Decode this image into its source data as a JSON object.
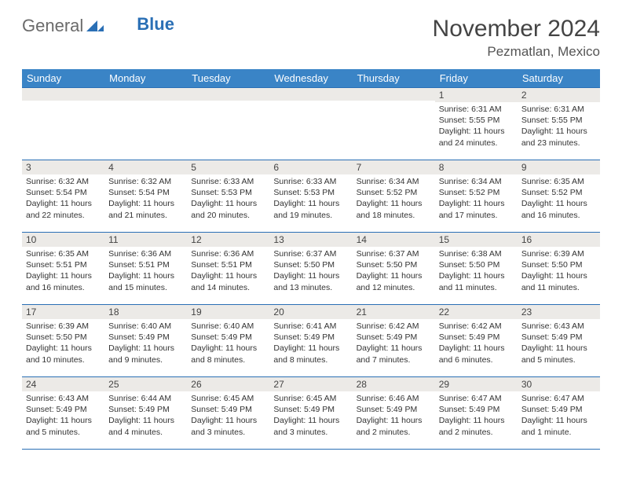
{
  "logo": {
    "part1": "General",
    "part2": "Blue"
  },
  "title": "November 2024",
  "location": "Pezmatlan, Mexico",
  "daynames": [
    "Sunday",
    "Monday",
    "Tuesday",
    "Wednesday",
    "Thursday",
    "Friday",
    "Saturday"
  ],
  "colors": {
    "header_bg": "#3a84c6",
    "header_text": "#ffffff",
    "cell_border": "#2a6fb5",
    "daynum_bg": "#eceae7",
    "logo_gray": "#6b6b6b",
    "logo_blue": "#2a6fb5"
  },
  "weeks": [
    [
      {
        "n": "",
        "sr": "",
        "ss": "",
        "dl": ""
      },
      {
        "n": "",
        "sr": "",
        "ss": "",
        "dl": ""
      },
      {
        "n": "",
        "sr": "",
        "ss": "",
        "dl": ""
      },
      {
        "n": "",
        "sr": "",
        "ss": "",
        "dl": ""
      },
      {
        "n": "",
        "sr": "",
        "ss": "",
        "dl": ""
      },
      {
        "n": "1",
        "sr": "Sunrise: 6:31 AM",
        "ss": "Sunset: 5:55 PM",
        "dl": "Daylight: 11 hours and 24 minutes."
      },
      {
        "n": "2",
        "sr": "Sunrise: 6:31 AM",
        "ss": "Sunset: 5:55 PM",
        "dl": "Daylight: 11 hours and 23 minutes."
      }
    ],
    [
      {
        "n": "3",
        "sr": "Sunrise: 6:32 AM",
        "ss": "Sunset: 5:54 PM",
        "dl": "Daylight: 11 hours and 22 minutes."
      },
      {
        "n": "4",
        "sr": "Sunrise: 6:32 AM",
        "ss": "Sunset: 5:54 PM",
        "dl": "Daylight: 11 hours and 21 minutes."
      },
      {
        "n": "5",
        "sr": "Sunrise: 6:33 AM",
        "ss": "Sunset: 5:53 PM",
        "dl": "Daylight: 11 hours and 20 minutes."
      },
      {
        "n": "6",
        "sr": "Sunrise: 6:33 AM",
        "ss": "Sunset: 5:53 PM",
        "dl": "Daylight: 11 hours and 19 minutes."
      },
      {
        "n": "7",
        "sr": "Sunrise: 6:34 AM",
        "ss": "Sunset: 5:52 PM",
        "dl": "Daylight: 11 hours and 18 minutes."
      },
      {
        "n": "8",
        "sr": "Sunrise: 6:34 AM",
        "ss": "Sunset: 5:52 PM",
        "dl": "Daylight: 11 hours and 17 minutes."
      },
      {
        "n": "9",
        "sr": "Sunrise: 6:35 AM",
        "ss": "Sunset: 5:52 PM",
        "dl": "Daylight: 11 hours and 16 minutes."
      }
    ],
    [
      {
        "n": "10",
        "sr": "Sunrise: 6:35 AM",
        "ss": "Sunset: 5:51 PM",
        "dl": "Daylight: 11 hours and 16 minutes."
      },
      {
        "n": "11",
        "sr": "Sunrise: 6:36 AM",
        "ss": "Sunset: 5:51 PM",
        "dl": "Daylight: 11 hours and 15 minutes."
      },
      {
        "n": "12",
        "sr": "Sunrise: 6:36 AM",
        "ss": "Sunset: 5:51 PM",
        "dl": "Daylight: 11 hours and 14 minutes."
      },
      {
        "n": "13",
        "sr": "Sunrise: 6:37 AM",
        "ss": "Sunset: 5:50 PM",
        "dl": "Daylight: 11 hours and 13 minutes."
      },
      {
        "n": "14",
        "sr": "Sunrise: 6:37 AM",
        "ss": "Sunset: 5:50 PM",
        "dl": "Daylight: 11 hours and 12 minutes."
      },
      {
        "n": "15",
        "sr": "Sunrise: 6:38 AM",
        "ss": "Sunset: 5:50 PM",
        "dl": "Daylight: 11 hours and 11 minutes."
      },
      {
        "n": "16",
        "sr": "Sunrise: 6:39 AM",
        "ss": "Sunset: 5:50 PM",
        "dl": "Daylight: 11 hours and 11 minutes."
      }
    ],
    [
      {
        "n": "17",
        "sr": "Sunrise: 6:39 AM",
        "ss": "Sunset: 5:50 PM",
        "dl": "Daylight: 11 hours and 10 minutes."
      },
      {
        "n": "18",
        "sr": "Sunrise: 6:40 AM",
        "ss": "Sunset: 5:49 PM",
        "dl": "Daylight: 11 hours and 9 minutes."
      },
      {
        "n": "19",
        "sr": "Sunrise: 6:40 AM",
        "ss": "Sunset: 5:49 PM",
        "dl": "Daylight: 11 hours and 8 minutes."
      },
      {
        "n": "20",
        "sr": "Sunrise: 6:41 AM",
        "ss": "Sunset: 5:49 PM",
        "dl": "Daylight: 11 hours and 8 minutes."
      },
      {
        "n": "21",
        "sr": "Sunrise: 6:42 AM",
        "ss": "Sunset: 5:49 PM",
        "dl": "Daylight: 11 hours and 7 minutes."
      },
      {
        "n": "22",
        "sr": "Sunrise: 6:42 AM",
        "ss": "Sunset: 5:49 PM",
        "dl": "Daylight: 11 hours and 6 minutes."
      },
      {
        "n": "23",
        "sr": "Sunrise: 6:43 AM",
        "ss": "Sunset: 5:49 PM",
        "dl": "Daylight: 11 hours and 5 minutes."
      }
    ],
    [
      {
        "n": "24",
        "sr": "Sunrise: 6:43 AM",
        "ss": "Sunset: 5:49 PM",
        "dl": "Daylight: 11 hours and 5 minutes."
      },
      {
        "n": "25",
        "sr": "Sunrise: 6:44 AM",
        "ss": "Sunset: 5:49 PM",
        "dl": "Daylight: 11 hours and 4 minutes."
      },
      {
        "n": "26",
        "sr": "Sunrise: 6:45 AM",
        "ss": "Sunset: 5:49 PM",
        "dl": "Daylight: 11 hours and 3 minutes."
      },
      {
        "n": "27",
        "sr": "Sunrise: 6:45 AM",
        "ss": "Sunset: 5:49 PM",
        "dl": "Daylight: 11 hours and 3 minutes."
      },
      {
        "n": "28",
        "sr": "Sunrise: 6:46 AM",
        "ss": "Sunset: 5:49 PM",
        "dl": "Daylight: 11 hours and 2 minutes."
      },
      {
        "n": "29",
        "sr": "Sunrise: 6:47 AM",
        "ss": "Sunset: 5:49 PM",
        "dl": "Daylight: 11 hours and 2 minutes."
      },
      {
        "n": "30",
        "sr": "Sunrise: 6:47 AM",
        "ss": "Sunset: 5:49 PM",
        "dl": "Daylight: 11 hours and 1 minute."
      }
    ]
  ]
}
